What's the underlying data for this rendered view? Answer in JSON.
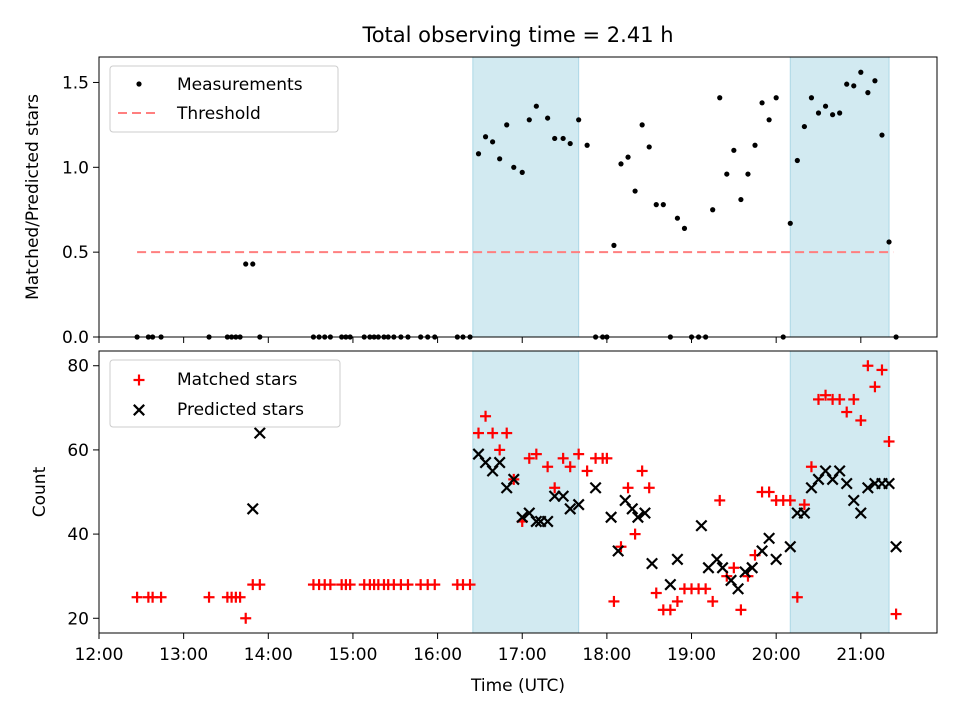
{
  "title": "Total observing time = 2.41 h",
  "colors": {
    "measurement": "#000000",
    "threshold": "#ff7f7f",
    "matched": "#ff0000",
    "predicted": "#000000",
    "shade": "#add8e6"
  },
  "chart_data": [
    {
      "type": "scatter",
      "title": "Total observing time = 2.41 h",
      "xlabel": "",
      "ylabel": "Matched/Predicted stars",
      "xlim": [
        "12:00",
        "21:54"
      ],
      "ylim": [
        0,
        1.65
      ],
      "yticks": [
        0.0,
        0.5,
        1.0,
        1.5
      ],
      "ytick_labels": [
        "0.0",
        "0.5",
        "1.0",
        "1.5"
      ],
      "shaded_intervals": [
        [
          "16:25",
          "17:40"
        ],
        [
          "20:10",
          "21:20"
        ]
      ],
      "legend_position": "upper-left",
      "legend": [
        "Measurements",
        "Threshold"
      ],
      "threshold": {
        "name": "Threshold",
        "y": 0.5,
        "x_from": "12:27",
        "x_to": "21:23",
        "style": "dashed"
      },
      "series": [
        {
          "name": "Measurements",
          "marker": "dot",
          "x": [
            "12:27",
            "12:35",
            "12:38",
            "12:44",
            "13:18",
            "13:31",
            "13:34",
            "13:37",
            "13:40",
            "13:44",
            "13:49",
            "13:54",
            "14:32",
            "14:36",
            "14:40",
            "14:44",
            "14:52",
            "14:55",
            "14:58",
            "15:08",
            "15:12",
            "15:15",
            "15:18",
            "15:22",
            "15:25",
            "15:29",
            "15:34",
            "15:39",
            "15:48",
            "15:53",
            "15:58",
            "16:14",
            "16:18",
            "16:23",
            "16:29",
            "16:34",
            "16:39",
            "16:44",
            "16:49",
            "16:54",
            "17:00",
            "17:05",
            "17:10",
            "17:18",
            "17:23",
            "17:29",
            "17:34",
            "17:40",
            "17:46",
            "17:52",
            "17:57",
            "18:00",
            "18:05",
            "18:10",
            "18:15",
            "18:20",
            "18:25",
            "18:30",
            "18:35",
            "18:40",
            "18:45",
            "18:50",
            "18:55",
            "19:00",
            "19:05",
            "19:10",
            "19:15",
            "19:20",
            "19:25",
            "19:30",
            "19:35",
            "19:40",
            "19:45",
            "19:50",
            "19:55",
            "20:00",
            "20:05",
            "20:10",
            "20:15",
            "20:20",
            "20:25",
            "20:30",
            "20:35",
            "20:40",
            "20:45",
            "20:50",
            "20:55",
            "21:00",
            "21:05",
            "21:10",
            "21:15",
            "21:20",
            "21:25"
          ],
          "y": [
            0,
            0,
            0,
            0,
            0,
            0,
            0,
            0,
            0,
            0.43,
            0.43,
            0,
            0,
            0,
            0,
            0,
            0,
            0,
            0,
            0,
            0,
            0,
            0,
            0,
            0,
            0,
            0,
            0,
            0,
            0,
            0,
            0,
            0,
            0,
            1.08,
            1.18,
            1.15,
            1.05,
            1.25,
            1.0,
            0.97,
            1.28,
            1.36,
            1.29,
            1.17,
            1.17,
            1.14,
            1.28,
            1.13,
            0,
            0,
            0,
            0.54,
            1.02,
            1.06,
            0.86,
            1.25,
            1.12,
            0.78,
            0.78,
            0,
            0.7,
            0.64,
            0,
            0,
            0,
            0.75,
            1.41,
            0.96,
            1.1,
            0.81,
            0.96,
            1.13,
            1.38,
            1.28,
            1.41,
            0,
            0.67,
            1.04,
            1.24,
            1.41,
            1.32,
            1.36,
            1.31,
            1.32,
            1.49,
            1.48,
            1.56,
            1.44,
            1.51,
            1.19,
            0.56,
            0
          ]
        }
      ]
    },
    {
      "type": "scatter",
      "title": "",
      "xlabel": "Time (UTC)",
      "ylabel": "Count",
      "xlim": [
        "12:00",
        "21:54"
      ],
      "xticks": [
        "12:00",
        "13:00",
        "14:00",
        "15:00",
        "16:00",
        "17:00",
        "18:00",
        "19:00",
        "20:00",
        "21:00"
      ],
      "ylim": [
        16.5,
        83.5
      ],
      "yticks": [
        20,
        40,
        60,
        80
      ],
      "ytick_labels": [
        "20",
        "40",
        "60",
        "80"
      ],
      "shaded_intervals": [
        [
          "16:25",
          "17:40"
        ],
        [
          "20:10",
          "21:20"
        ]
      ],
      "legend_position": "upper-left",
      "legend": [
        "Matched stars",
        "Predicted stars"
      ],
      "series": [
        {
          "name": "Matched stars",
          "marker": "plus",
          "x": [
            "12:27",
            "12:35",
            "12:38",
            "12:44",
            "13:18",
            "13:31",
            "13:34",
            "13:37",
            "13:40",
            "13:44",
            "13:49",
            "13:54",
            "14:32",
            "14:36",
            "14:40",
            "14:44",
            "14:52",
            "14:55",
            "14:58",
            "15:08",
            "15:12",
            "15:15",
            "15:18",
            "15:22",
            "15:25",
            "15:29",
            "15:34",
            "15:39",
            "15:48",
            "15:53",
            "15:58",
            "16:14",
            "16:18",
            "16:23",
            "16:29",
            "16:34",
            "16:39",
            "16:44",
            "16:49",
            "16:54",
            "17:00",
            "17:05",
            "17:10",
            "17:18",
            "17:23",
            "17:29",
            "17:34",
            "17:40",
            "17:46",
            "17:52",
            "17:57",
            "18:00",
            "18:05",
            "18:10",
            "18:15",
            "18:20",
            "18:25",
            "18:30",
            "18:35",
            "18:40",
            "18:45",
            "18:50",
            "18:55",
            "19:00",
            "19:05",
            "19:10",
            "19:15",
            "19:20",
            "19:25",
            "19:30",
            "19:35",
            "19:40",
            "19:45",
            "19:50",
            "19:55",
            "20:00",
            "20:05",
            "20:10",
            "20:15",
            "20:20",
            "20:25",
            "20:30",
            "20:35",
            "20:40",
            "20:45",
            "20:50",
            "20:55",
            "21:00",
            "21:05",
            "21:10",
            "21:15",
            "21:20",
            "21:25"
          ],
          "y": [
            25,
            25,
            25,
            25,
            25,
            25,
            25,
            25,
            25,
            20,
            28,
            28,
            28,
            28,
            28,
            28,
            28,
            28,
            28,
            28,
            28,
            28,
            28,
            28,
            28,
            28,
            28,
            28,
            28,
            28,
            28,
            28,
            28,
            28,
            64,
            68,
            64,
            60,
            64,
            53,
            43,
            58,
            59,
            56,
            51,
            58,
            56,
            59,
            55,
            58,
            58,
            58,
            24,
            37,
            51,
            40,
            55,
            51,
            26,
            22,
            22,
            24,
            27,
            27,
            27,
            27,
            24,
            48,
            30,
            32,
            22,
            30,
            35,
            50,
            50,
            48,
            48,
            48,
            25,
            47,
            56,
            72,
            73,
            72,
            72,
            69,
            72,
            67,
            80,
            75,
            79,
            62,
            21
          ]
        },
        {
          "name": "Predicted stars",
          "marker": "x",
          "x": [
            "13:49",
            "13:54",
            "16:29",
            "16:34",
            "16:39",
            "16:44",
            "16:49",
            "16:54",
            "17:00",
            "17:05",
            "17:10",
            "17:13",
            "17:18",
            "17:23",
            "17:29",
            "17:34",
            "17:40",
            "17:52",
            "18:03",
            "18:08",
            "18:13",
            "18:18",
            "18:22",
            "18:27",
            "18:32",
            "18:45",
            "18:50",
            "19:07",
            "19:12",
            "19:18",
            "19:22",
            "19:28",
            "19:33",
            "19:38",
            "19:43",
            "19:50",
            "19:55",
            "20:00",
            "20:10",
            "20:15",
            "20:20",
            "20:25",
            "20:30",
            "20:35",
            "20:40",
            "20:45",
            "20:50",
            "20:55",
            "21:00",
            "21:05",
            "21:10",
            "21:15",
            "21:20",
            "21:25"
          ],
          "y": [
            46,
            64,
            59,
            57,
            55,
            57,
            51,
            53,
            44,
            45,
            43,
            43,
            43,
            49,
            49,
            46,
            47,
            51,
            44,
            36,
            48,
            46,
            44,
            45,
            33,
            28,
            34,
            42,
            32,
            34,
            32,
            29,
            27,
            31,
            32,
            36,
            39,
            34,
            37,
            45,
            45,
            51,
            53,
            55,
            53,
            55,
            52,
            48,
            45,
            51,
            52,
            52,
            52,
            37
          ]
        }
      ]
    }
  ]
}
